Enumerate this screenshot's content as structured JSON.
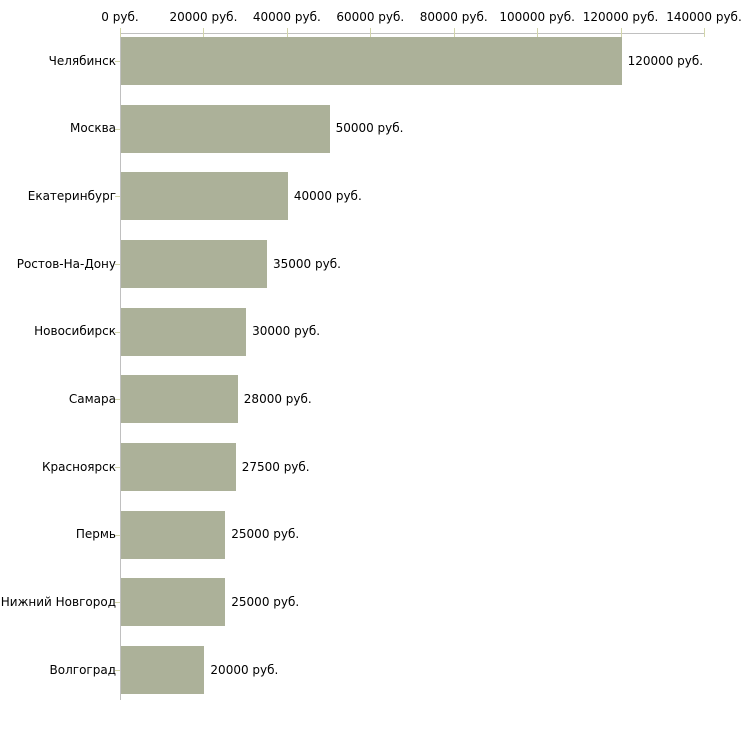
{
  "chart_data": {
    "type": "bar",
    "orientation": "horizontal",
    "title": "",
    "categories": [
      "Челябинск",
      "Москва",
      "Екатеринбург",
      "Ростов-На-Дону",
      "Новосибирск",
      "Самара",
      "Красноярск",
      "Пермь",
      "Нижний Новгород",
      "Волгоград"
    ],
    "values": [
      120000,
      50000,
      40000,
      35000,
      30000,
      28000,
      27500,
      25000,
      25000,
      20000
    ],
    "value_labels": [
      "120000 руб.",
      "50000 руб.",
      "40000 руб.",
      "35000 руб.",
      "30000 руб.",
      "28000 руб.",
      "27500 руб.",
      "25000 руб.",
      "25000 руб.",
      "20000 руб."
    ],
    "unit": "руб.",
    "xlabel": "",
    "ylabel": "",
    "xlim": [
      0,
      140000
    ],
    "x_ticks": [
      0,
      20000,
      40000,
      60000,
      80000,
      100000,
      120000,
      140000
    ],
    "x_tick_labels": [
      "0 руб.",
      "20000 руб.",
      "40000 руб.",
      "60000 руб.",
      "80000 руб.",
      "100000 руб.",
      "120000 руб.",
      "140000 руб."
    ],
    "grid": false,
    "legend": false,
    "colors": {
      "bar": "#acb199",
      "axis_line": "#c0c0c0",
      "tick": "#d2d5aa",
      "text": "#000000",
      "background": "#ffffff"
    }
  }
}
